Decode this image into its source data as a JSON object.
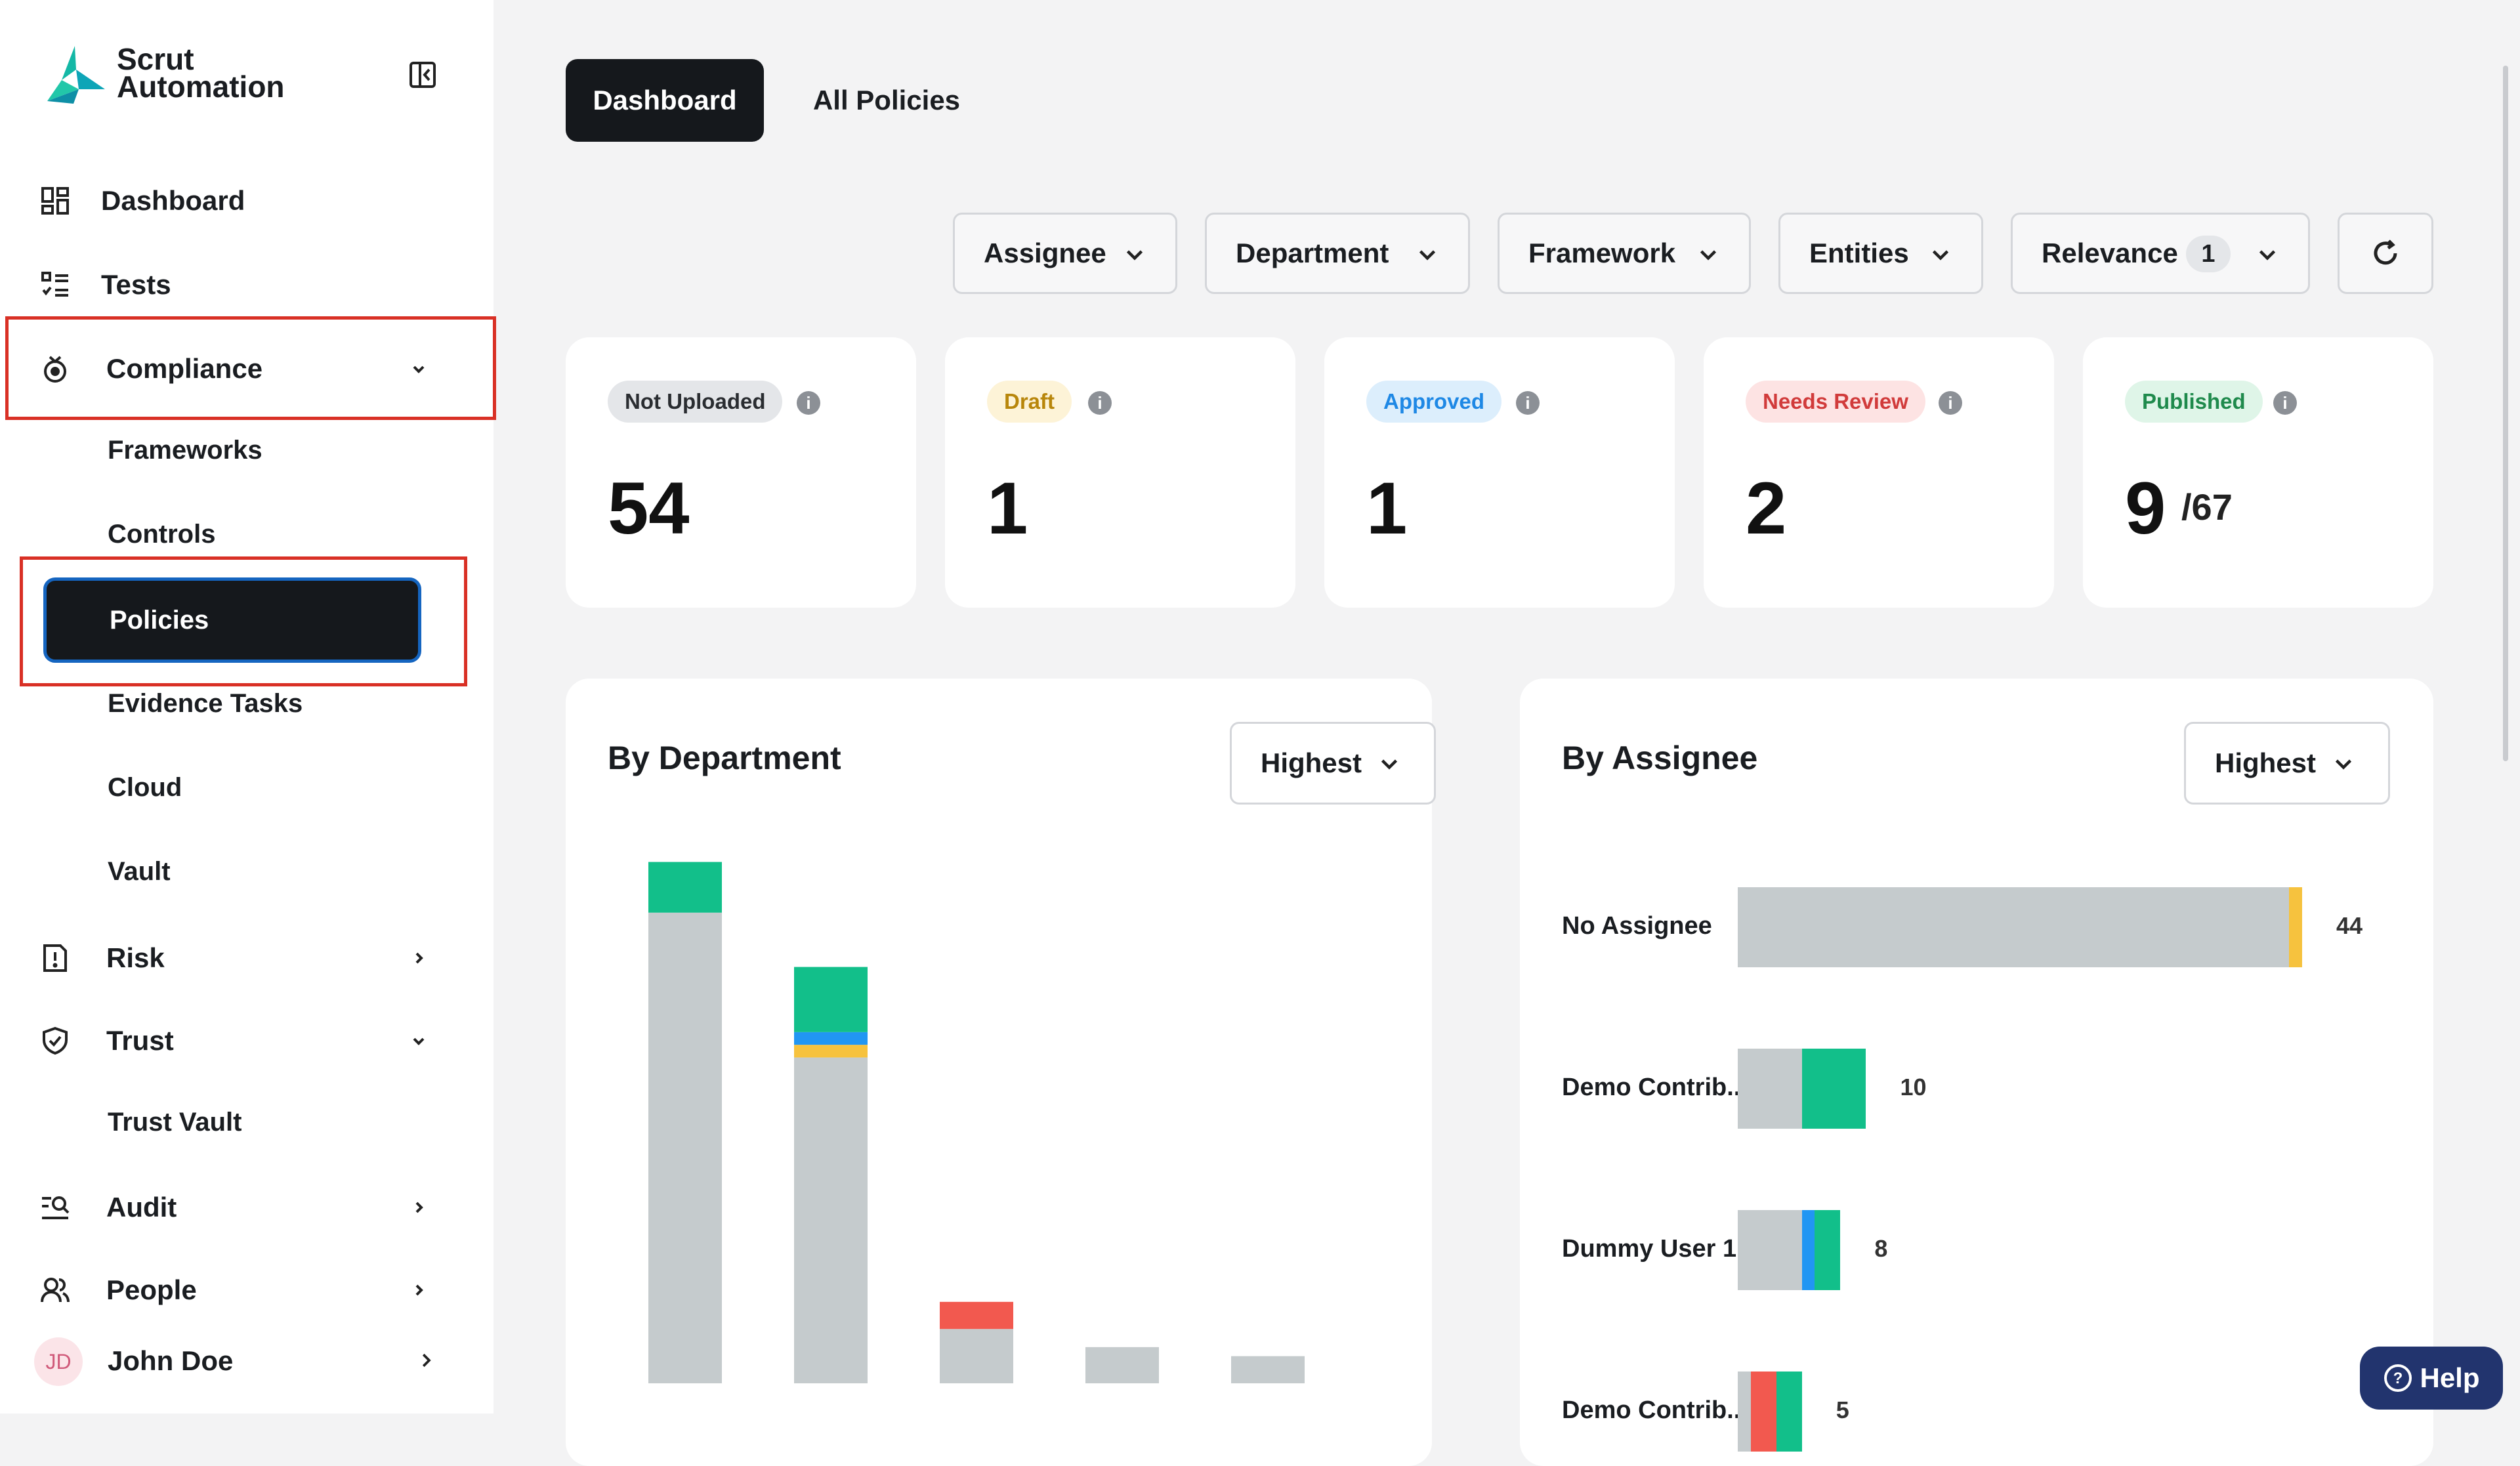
{
  "brand": {
    "line1": "Scrut",
    "line2": "Automation"
  },
  "sidebar": {
    "items": [
      {
        "label": "Dashboard",
        "icon": "dashboard-grid-icon"
      },
      {
        "label": "Tests",
        "icon": "checklist-icon"
      },
      {
        "label": "Compliance",
        "icon": "compliance-medal-icon",
        "expanded": true
      },
      {
        "label": "Risk",
        "icon": "risk-document-icon"
      },
      {
        "label": "Trust",
        "icon": "shield-check-icon",
        "expanded": true
      },
      {
        "label": "Audit",
        "icon": "audit-search-icon"
      },
      {
        "label": "People",
        "icon": "people-icon"
      }
    ],
    "compliance_sub": [
      "Frameworks",
      "Controls",
      "Policies",
      "Evidence Tasks",
      "Cloud",
      "Vault"
    ],
    "trust_sub": [
      "Trust Vault"
    ],
    "active_sub": "Policies",
    "user": {
      "initials": "JD",
      "name": "John Doe"
    }
  },
  "tabs": [
    {
      "label": "Dashboard",
      "active": true
    },
    {
      "label": "All Policies",
      "active": false
    }
  ],
  "filters": {
    "assignee": "Assignee",
    "department": "Department",
    "framework": "Framework",
    "entities": "Entities",
    "relevance": "Relevance",
    "relevance_count": "1"
  },
  "status_cards": [
    {
      "label": "Not Uploaded",
      "count": "54",
      "bg": "#e4e6e9",
      "fg": "#2a2d31"
    },
    {
      "label": "Draft",
      "count": "1",
      "bg": "#fdf3d7",
      "fg": "#b8860b"
    },
    {
      "label": "Approved",
      "count": "1",
      "bg": "#dceefc",
      "fg": "#1e88e5"
    },
    {
      "label": "Needs Review",
      "count": "2",
      "bg": "#fde3e3",
      "fg": "#d13b3b"
    },
    {
      "label": "Published",
      "count": "9",
      "total": "/67",
      "bg": "#dff5e8",
      "fg": "#1f8a4c"
    }
  ],
  "colors": {
    "not_uploaded": "#c5cbcd",
    "published": "#12bf8a",
    "approved": "#2196f3",
    "draft": "#f6c23e",
    "needs_review": "#f2594f",
    "dark": "#15181c",
    "accent_blue": "#1565c0"
  },
  "by_department": {
    "title": "By Department",
    "sort": "Highest",
    "chart_data": {
      "type": "bar",
      "stacked": true,
      "categories": [
        "",
        "",
        "",
        "",
        ""
      ],
      "series": [
        {
          "values": [
            26,
            18,
            3,
            2,
            1.5
          ],
          "color": "#c5cbcd"
        },
        {
          "values": [
            0,
            0.7,
            0,
            0,
            0
          ],
          "color": "#f6c23e"
        },
        {
          "values": [
            0,
            0.7,
            0,
            0,
            0
          ],
          "color": "#2196f3"
        },
        {
          "values": [
            0,
            0,
            1.5,
            0,
            0
          ],
          "color": "#f2594f"
        },
        {
          "values": [
            2.8,
            3.6,
            0,
            0,
            0
          ],
          "color": "#12bf8a"
        }
      ],
      "ylim": [
        0,
        29
      ]
    }
  },
  "by_assignee": {
    "title": "By Assignee",
    "sort": "Highest",
    "chart_data": {
      "type": "bar",
      "orientation": "horizontal",
      "stacked": true,
      "categories": [
        "No Assignee",
        "Demo Contrib...",
        "Dummy User 1",
        "Demo Contrib..."
      ],
      "totals": [
        "44",
        "10",
        "8",
        "5"
      ],
      "series": [
        {
          "values": [
            43,
            5,
            5,
            1
          ],
          "color": "#c5cbcd"
        },
        {
          "values": [
            0,
            0,
            1,
            0
          ],
          "color": "#2196f3"
        },
        {
          "values": [
            0,
            0,
            0,
            2
          ],
          "color": "#f2594f"
        },
        {
          "values": [
            0,
            5,
            2,
            2
          ],
          "color": "#12bf8a"
        },
        {
          "values": [
            1,
            0,
            0,
            0
          ],
          "color": "#f6c23e"
        }
      ],
      "xlim": [
        0,
        44
      ]
    }
  },
  "help": {
    "label": "Help"
  }
}
